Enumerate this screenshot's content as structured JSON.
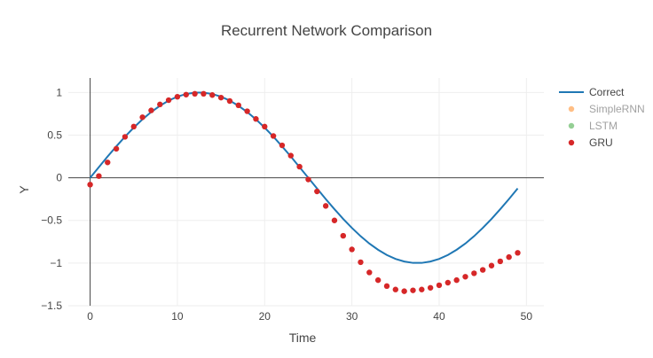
{
  "chart_data": {
    "type": "line",
    "title": "Recurrent Network Comparison",
    "xlabel": "Time",
    "ylabel": "Y",
    "xlim": [
      -2.5,
      52
    ],
    "ylim": [
      -1.5,
      1.17
    ],
    "x_ticks": [
      0,
      10,
      20,
      30,
      40,
      50
    ],
    "y_ticks": [
      -1.5,
      -1,
      -0.5,
      0,
      0.5,
      1
    ],
    "x_tick_labels": [
      "0",
      "10",
      "20",
      "30",
      "40",
      "50"
    ],
    "y_tick_labels": [
      "−1.5",
      "−1",
      "−0.5",
      "0",
      "0.5",
      "1"
    ],
    "grid": true,
    "legend_position": "top-right",
    "series": [
      {
        "name": "Correct",
        "mode": "lines",
        "color": "#1f77b4",
        "visible": true,
        "x": [
          0,
          1,
          2,
          3,
          4,
          5,
          6,
          7,
          8,
          9,
          10,
          11,
          12,
          13,
          14,
          15,
          16,
          17,
          18,
          19,
          20,
          21,
          22,
          23,
          24,
          25,
          26,
          27,
          28,
          29,
          30,
          31,
          32,
          33,
          34,
          35,
          36,
          37,
          38,
          39,
          40,
          41,
          42,
          43,
          44,
          45,
          46,
          47,
          48,
          49
        ],
        "y": [
          0,
          0.125,
          0.249,
          0.368,
          0.482,
          0.588,
          0.685,
          0.771,
          0.844,
          0.905,
          0.951,
          0.982,
          0.998,
          0.998,
          0.982,
          0.951,
          0.905,
          0.844,
          0.771,
          0.685,
          0.588,
          0.482,
          0.368,
          0.249,
          0.125,
          0,
          -0.125,
          -0.249,
          -0.368,
          -0.482,
          -0.588,
          -0.685,
          -0.771,
          -0.844,
          -0.905,
          -0.951,
          -0.982,
          -0.998,
          -0.998,
          -0.982,
          -0.951,
          -0.905,
          -0.844,
          -0.771,
          -0.685,
          -0.588,
          -0.482,
          -0.368,
          -0.249,
          -0.125
        ]
      },
      {
        "name": "SimpleRNN",
        "mode": "markers",
        "color": "#ff7f0e",
        "visible": false,
        "x": [],
        "y": []
      },
      {
        "name": "LSTM",
        "mode": "markers",
        "color": "#2ca02c",
        "visible": false,
        "x": [],
        "y": []
      },
      {
        "name": "GRU",
        "mode": "markers",
        "color": "#d62728",
        "visible": true,
        "x": [
          0,
          1,
          2,
          3,
          4,
          5,
          6,
          7,
          8,
          9,
          10,
          11,
          12,
          13,
          14,
          15,
          16,
          17,
          18,
          19,
          20,
          21,
          22,
          23,
          24,
          25,
          26,
          27,
          28,
          29,
          30,
          31,
          32,
          33,
          34,
          35,
          36,
          37,
          38,
          39,
          40,
          41,
          42,
          43,
          44,
          45,
          46,
          47,
          48,
          49
        ],
        "y": [
          -0.08,
          0.02,
          0.18,
          0.34,
          0.48,
          0.6,
          0.71,
          0.79,
          0.86,
          0.91,
          0.95,
          0.975,
          0.985,
          0.985,
          0.97,
          0.94,
          0.9,
          0.85,
          0.78,
          0.69,
          0.6,
          0.49,
          0.38,
          0.26,
          0.13,
          -0.02,
          -0.16,
          -0.33,
          -0.5,
          -0.68,
          -0.84,
          -0.99,
          -1.11,
          -1.2,
          -1.27,
          -1.31,
          -1.33,
          -1.32,
          -1.31,
          -1.29,
          -1.26,
          -1.23,
          -1.2,
          -1.16,
          -1.12,
          -1.08,
          -1.03,
          -0.98,
          -0.93,
          -0.88
        ]
      }
    ]
  }
}
